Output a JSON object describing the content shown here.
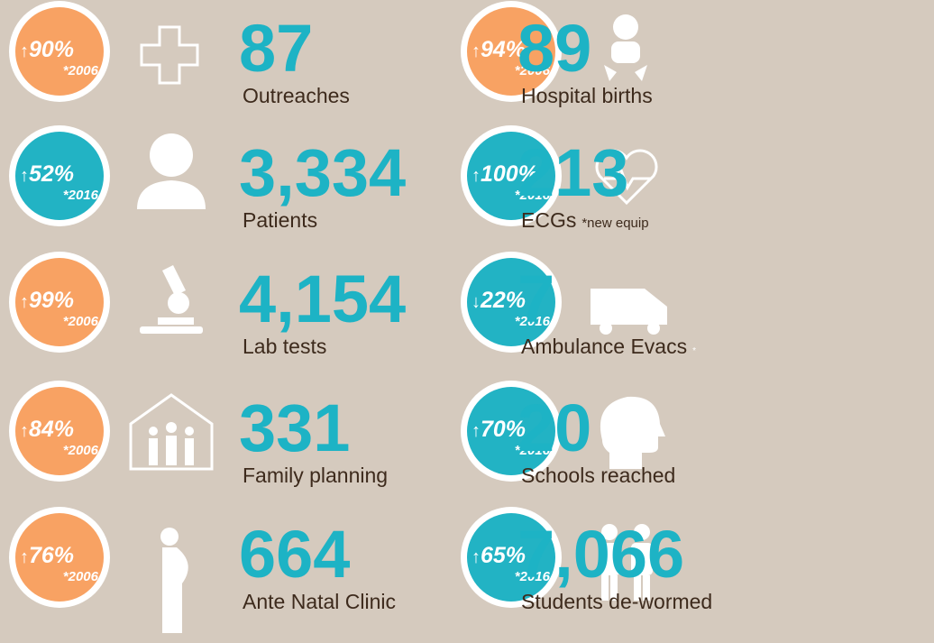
{
  "items": [
    {
      "color": "#f8a263",
      "arrow": "↑",
      "percent": "90%",
      "year": "*2006",
      "number": "87",
      "label": "Outreaches"
    },
    {
      "color": "#22b3c4",
      "arrow": "↑",
      "percent": "52%",
      "year": "*2016",
      "number": "3,334",
      "label": "Patients"
    },
    {
      "color": "#f8a263",
      "arrow": "↑",
      "percent": "99%",
      "year": "*2006",
      "number": "4,154",
      "label": "Lab tests"
    },
    {
      "color": "#f8a263",
      "arrow": "↑",
      "percent": "84%",
      "year": "*2006",
      "number": "331",
      "label": "Family  planning"
    },
    {
      "color": "#f8a263",
      "arrow": "↑",
      "percent": "76%",
      "year": "*2006",
      "number": "664",
      "label": "Ante Natal Clinic"
    },
    {
      "color": "#f8a263",
      "arrow": "↑",
      "percent": "94%",
      "year": "*2006",
      "number": "89",
      "label": "Hospital births"
    },
    {
      "color": "#22b3c4",
      "arrow": "↑",
      "percent": "100%",
      "year": "*2016",
      "number": "213",
      "label": "ECGs",
      "note": "*new equip"
    },
    {
      "color": "#22b3c4",
      "arrow": "↓",
      "percent": "22%",
      "year": "*2016",
      "number": "7",
      "label": "Ambulance Evacs",
      "note": "*"
    },
    {
      "color": "#22b3c4",
      "arrow": "↑",
      "percent": "70%",
      "year": "*2016",
      "number": "20",
      "label": "Schools reached"
    },
    {
      "color": "#22b3c4",
      "arrow": "↑",
      "percent": "65%",
      "year": "*2016",
      "number": "7,066",
      "label": "Students de-wormed"
    }
  ]
}
